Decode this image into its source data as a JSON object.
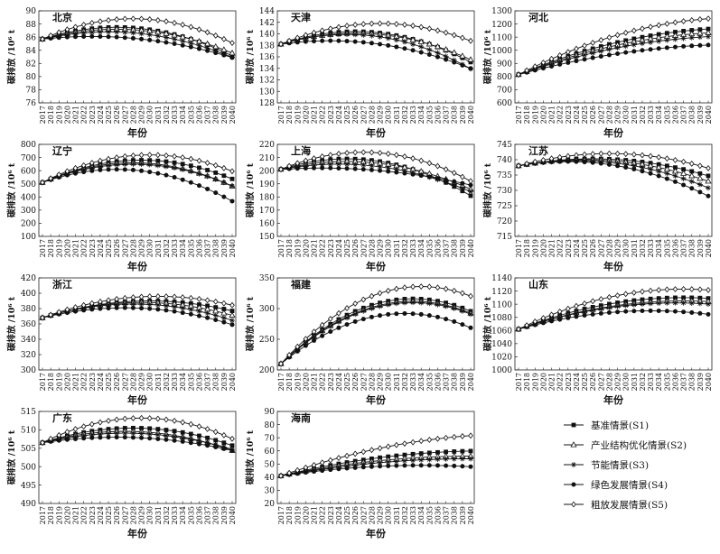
{
  "legend": [
    {
      "key": "S1",
      "label": "基准情景(S1)",
      "marker": "square"
    },
    {
      "key": "S2",
      "label": "产业结构优化情景(S2)",
      "marker": "triangle"
    },
    {
      "key": "S3",
      "label": "节能情景(S3)",
      "marker": "star"
    },
    {
      "key": "S4",
      "label": "绿色发展情景(S4)",
      "marker": "circle"
    },
    {
      "key": "S5",
      "label": "粗放发展情景(S5)",
      "marker": "diamond"
    }
  ],
  "colors": {
    "line": "#111111",
    "axis": "#222222"
  },
  "chart_data": [
    {
      "type": "line",
      "title": "北京",
      "xlabel": "年份",
      "ylabel": "碳排放 /10⁶ t",
      "x_start": 2017,
      "x_end": 2040,
      "ylim": [
        76,
        90
      ],
      "yticks": [
        76,
        78,
        80,
        82,
        84,
        86,
        88,
        90
      ],
      "start": 85.7,
      "series": [
        {
          "name": "S1",
          "peak_year": 2026,
          "peak": 87.5,
          "end": 81.8
        },
        {
          "name": "S2",
          "peak_year": 2026,
          "peak": 87.2,
          "end": 81.1
        },
        {
          "name": "S3",
          "peak_year": 2025,
          "peak": 86.8,
          "end": 80.9
        },
        {
          "name": "S4",
          "peak_year": 2023,
          "peak": 86.1,
          "end": 79.7
        },
        {
          "name": "S5",
          "peak_year": 2028,
          "peak": 88.8,
          "end": 83.1
        }
      ]
    },
    {
      "type": "line",
      "title": "天津",
      "xlabel": "年份",
      "ylabel": "碳排放 /10⁶ t",
      "x_start": 2017,
      "x_end": 2040,
      "ylim": [
        128,
        144
      ],
      "yticks": [
        128,
        130,
        132,
        134,
        136,
        138,
        140,
        142,
        144
      ],
      "start": 138.2,
      "series": [
        {
          "name": "S1",
          "peak_year": 2026,
          "peak": 140.4,
          "end": 135.7
        },
        {
          "name": "S2",
          "peak_year": 2026,
          "peak": 140.1,
          "end": 135.3
        },
        {
          "name": "S3",
          "peak_year": 2025,
          "peak": 139.9,
          "end": 135.1
        },
        {
          "name": "S4",
          "peak_year": 2023,
          "peak": 138.8,
          "end": 133.3
        },
        {
          "name": "S5",
          "peak_year": 2029,
          "peak": 141.8,
          "end": 137.6
        }
      ]
    },
    {
      "type": "line",
      "title": "河北",
      "xlabel": "年份",
      "ylabel": "碳排放 /10⁶ t",
      "x_start": 2017,
      "x_end": 2040,
      "ylim": [
        600,
        1300
      ],
      "yticks": [
        600,
        700,
        800,
        900,
        1000,
        1100,
        1200,
        1300
      ],
      "start": 815,
      "series": [
        {
          "name": "S1",
          "peak_year": 2044,
          "peak": 1170,
          "end": 1150
        },
        {
          "name": "S2",
          "peak_year": 2044,
          "peak": 1140,
          "end": 1120
        },
        {
          "name": "S3",
          "peak_year": 2044,
          "peak": 1110,
          "end": 1090
        },
        {
          "name": "S4",
          "peak_year": 2044,
          "peak": 1045,
          "end": 1030
        },
        {
          "name": "S5",
          "peak_year": 2044,
          "peak": 1250,
          "end": 1235
        }
      ]
    },
    {
      "type": "line",
      "title": "辽宁",
      "xlabel": "年份",
      "ylabel": "碳排放 /10⁶ t",
      "x_start": 2017,
      "x_end": 2040,
      "ylim": [
        100,
        800
      ],
      "yticks": [
        100,
        200,
        300,
        400,
        500,
        600,
        700,
        800
      ],
      "start": 510,
      "series": [
        {
          "name": "S1",
          "peak_year": 2029,
          "peak": 680,
          "end": 545
        },
        {
          "name": "S2",
          "peak_year": 2028,
          "peak": 660,
          "end": 510
        },
        {
          "name": "S3",
          "peak_year": 2028,
          "peak": 650,
          "end": 495
        },
        {
          "name": "S4",
          "peak_year": 2026,
          "peak": 610,
          "end": 450
        },
        {
          "name": "S5",
          "peak_year": 2030,
          "peak": 720,
          "end": 600
        }
      ]
    },
    {
      "type": "line",
      "title": "上海",
      "xlabel": "年份",
      "ylabel": "碳排放 /10⁶ t",
      "x_start": 2017,
      "x_end": 2040,
      "ylim": [
        150,
        220
      ],
      "yticks": [
        150,
        160,
        170,
        180,
        190,
        200,
        210,
        220
      ],
      "start": 201,
      "series": [
        {
          "name": "S1",
          "peak_year": 2025,
          "peak": 209,
          "end": 172
        },
        {
          "name": "S2",
          "peak_year": 2025,
          "peak": 207,
          "end": 168
        },
        {
          "name": "S3",
          "peak_year": 2024,
          "peak": 205,
          "end": 167
        },
        {
          "name": "S4",
          "peak_year": 2022,
          "peak": 202,
          "end": 161
        },
        {
          "name": "S5",
          "peak_year": 2027,
          "peak": 214,
          "end": 182
        }
      ]
    },
    {
      "type": "line",
      "title": "江苏",
      "xlabel": "年份",
      "ylabel": "碳排放 /10⁶ t",
      "x_start": 2017,
      "x_end": 2040,
      "ylim": [
        715,
        745
      ],
      "yticks": [
        715,
        720,
        725,
        730,
        735,
        740,
        745
      ],
      "start": 738,
      "series": [
        {
          "name": "S1",
          "peak_year": 2026,
          "peak": 740.3,
          "end": 733.3
        },
        {
          "name": "S2",
          "peak_year": 2025,
          "peak": 740.0,
          "end": 730.3
        },
        {
          "name": "S3",
          "peak_year": 2024,
          "peak": 739.7,
          "end": 729.3
        },
        {
          "name": "S4",
          "peak_year": 2023,
          "peak": 739.4,
          "end": 725.3
        },
        {
          "name": "S5",
          "peak_year": 2028,
          "peak": 742.0,
          "end": 736.8
        }
      ]
    },
    {
      "type": "line",
      "title": "浙江",
      "xlabel": "年份",
      "ylabel": "碳排放 /10⁶ t",
      "x_start": 2017,
      "x_end": 2040,
      "ylim": [
        300,
        420
      ],
      "yticks": [
        300,
        320,
        340,
        360,
        380,
        400,
        420
      ],
      "start": 368,
      "series": [
        {
          "name": "S1",
          "peak_year": 2030,
          "peak": 390,
          "end": 365
        },
        {
          "name": "S2",
          "peak_year": 2029,
          "peak": 388,
          "end": 362
        },
        {
          "name": "S3",
          "peak_year": 2028,
          "peak": 386,
          "end": 360
        },
        {
          "name": "S4",
          "peak_year": 2027,
          "peak": 381,
          "end": 350
        },
        {
          "name": "S5",
          "peak_year": 2031,
          "peak": 396,
          "end": 377
        }
      ]
    },
    {
      "type": "line",
      "title": "福建",
      "xlabel": "年份",
      "ylabel": "碳排放 /10⁶ t",
      "x_start": 2017,
      "x_end": 2040,
      "ylim": [
        200,
        350
      ],
      "yticks": [
        200,
        250,
        300,
        350
      ],
      "start": 210,
      "series": [
        {
          "name": "S1",
          "peak_year": 2033,
          "peak": 316,
          "end": 300
        },
        {
          "name": "S2",
          "peak_year": 2033,
          "peak": 312,
          "end": 296
        },
        {
          "name": "S3",
          "peak_year": 2033,
          "peak": 310,
          "end": 294
        },
        {
          "name": "S4",
          "peak_year": 2032,
          "peak": 292,
          "end": 274
        },
        {
          "name": "S5",
          "peak_year": 2034,
          "peak": 336,
          "end": 318
        }
      ]
    },
    {
      "type": "line",
      "title": "山东",
      "xlabel": "年份",
      "ylabel": "碳排放 /10⁶ t",
      "x_start": 2017,
      "x_end": 2040,
      "ylim": [
        1000,
        1140
      ],
      "yticks": [
        1000,
        1020,
        1040,
        1060,
        1080,
        1100,
        1120,
        1140
      ],
      "start": 1062,
      "series": [
        {
          "name": "S1",
          "peak_year": 2037,
          "peak": 1110,
          "end": 1108
        },
        {
          "name": "S2",
          "peak_year": 2037,
          "peak": 1105,
          "end": 1103
        },
        {
          "name": "S3",
          "peak_year": 2036,
          "peak": 1102,
          "end": 1100
        },
        {
          "name": "S4",
          "peak_year": 2033,
          "peak": 1090,
          "end": 1088
        },
        {
          "name": "S5",
          "peak_year": 2037,
          "peak": 1123,
          "end": 1120
        }
      ]
    },
    {
      "type": "line",
      "title": "广东",
      "xlabel": "年份",
      "ylabel": "碳排放 /10⁶ t",
      "x_start": 2017,
      "x_end": 2040,
      "ylim": [
        490,
        515
      ],
      "yticks": [
        490,
        495,
        500,
        505,
        510,
        515
      ],
      "start": 506.5,
      "series": [
        {
          "name": "S1",
          "peak_year": 2028,
          "peak": 510.5,
          "end": 504.5
        },
        {
          "name": "S2",
          "peak_year": 2027,
          "peak": 509.6,
          "end": 502.6
        },
        {
          "name": "S3",
          "peak_year": 2027,
          "peak": 509.1,
          "end": 502.1
        },
        {
          "name": "S4",
          "peak_year": 2026,
          "peak": 508.0,
          "end": 499.4
        },
        {
          "name": "S5",
          "peak_year": 2029,
          "peak": 513.2,
          "end": 509.2
        }
      ]
    },
    {
      "type": "line",
      "title": "海南",
      "xlabel": "年份",
      "ylabel": "碳排放 /10⁶ t",
      "x_start": 2017,
      "x_end": 2040,
      "ylim": [
        20,
        90
      ],
      "yticks": [
        20,
        30,
        40,
        50,
        60,
        70,
        80,
        90
      ],
      "start": 41,
      "series": [
        {
          "name": "S1",
          "peak_year": 2042,
          "peak": 60,
          "end": 59.5
        },
        {
          "name": "S2",
          "peak_year": 2040,
          "peak": 56,
          "end": 56
        },
        {
          "name": "S3",
          "peak_year": 2040,
          "peak": 54,
          "end": 54
        },
        {
          "name": "S4",
          "peak_year": 2034,
          "peak": 49,
          "end": 49
        },
        {
          "name": "S5",
          "peak_year": 2046,
          "peak": 73,
          "end": 71.5
        }
      ]
    }
  ]
}
